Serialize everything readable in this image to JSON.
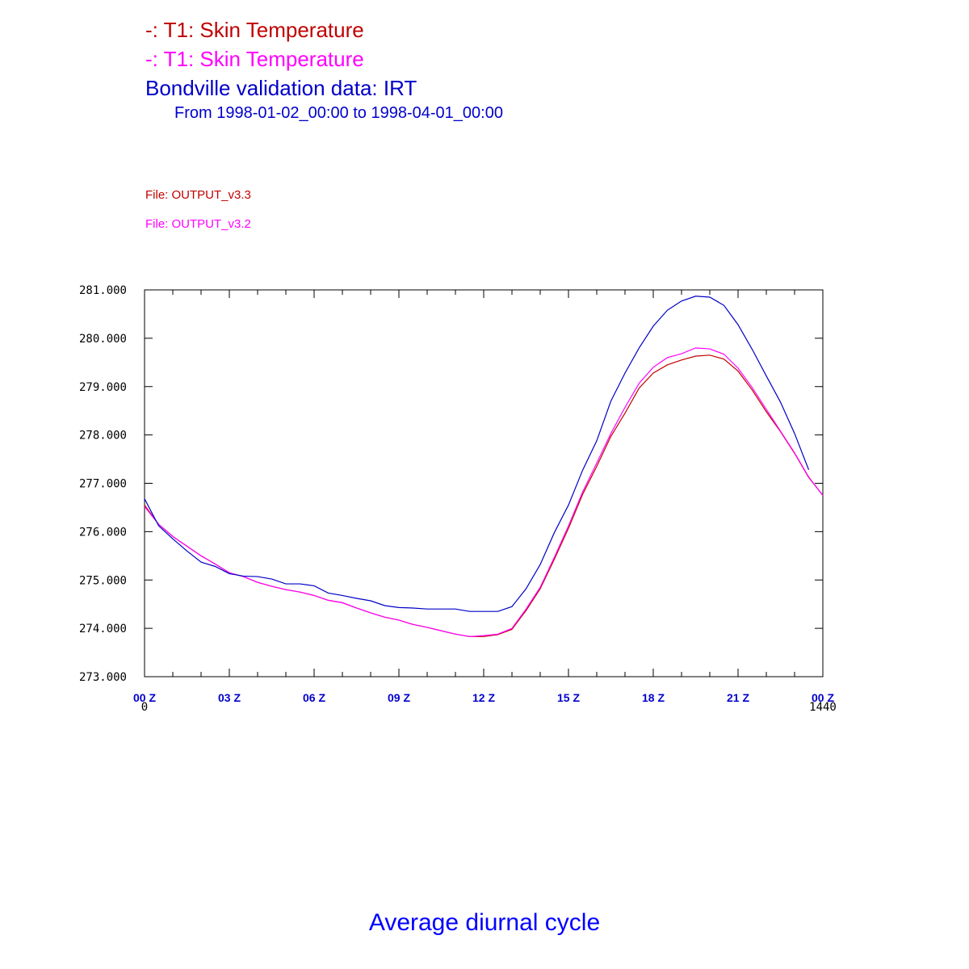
{
  "chart_data": {
    "type": "line",
    "title": "Average diurnal cycle",
    "subtitle": "From 1998-01-02_00:00 to 1998-04-01_00:00",
    "x": [
      0,
      30,
      60,
      90,
      120,
      150,
      180,
      210,
      240,
      270,
      300,
      330,
      360,
      390,
      420,
      450,
      480,
      510,
      540,
      570,
      600,
      630,
      660,
      690,
      720,
      750,
      780,
      810,
      840,
      870,
      900,
      930,
      960,
      990,
      1020,
      1050,
      1080,
      1110,
      1140,
      1170,
      1200,
      1230,
      1260,
      1290,
      1320,
      1350,
      1380,
      1410,
      1440
    ],
    "series": [
      {
        "name": "-: T1: Skin Temperature",
        "file": "File: OUTPUT_v3.3",
        "color": "#c00000",
        "values": [
          276.55,
          276.15,
          275.9,
          275.7,
          275.5,
          275.33,
          275.15,
          275.07,
          274.95,
          274.87,
          274.8,
          274.75,
          274.68,
          274.58,
          274.53,
          274.42,
          274.32,
          274.23,
          274.17,
          274.08,
          274.02,
          273.95,
          273.88,
          273.83,
          273.83,
          273.87,
          273.98,
          274.37,
          274.82,
          275.43,
          276.07,
          276.77,
          277.35,
          277.97,
          278.45,
          278.97,
          279.28,
          279.45,
          279.55,
          279.63,
          279.65,
          279.57,
          279.32,
          278.93,
          278.48,
          278.07,
          277.62,
          277.12,
          276.75
        ]
      },
      {
        "name": "-: T1: Skin Temperature",
        "file": "File: OUTPUT_v3.2",
        "color": "#ff00ff",
        "values": [
          276.52,
          276.15,
          275.9,
          275.7,
          275.5,
          275.33,
          275.15,
          275.07,
          274.95,
          274.87,
          274.8,
          274.75,
          274.68,
          274.58,
          274.53,
          274.42,
          274.32,
          274.23,
          274.17,
          274.08,
          274.02,
          273.95,
          273.88,
          273.83,
          273.85,
          273.88,
          274.0,
          274.4,
          274.85,
          275.47,
          276.12,
          276.82,
          277.42,
          278.03,
          278.57,
          279.07,
          279.4,
          279.6,
          279.68,
          279.8,
          279.78,
          279.67,
          279.38,
          278.98,
          278.53,
          278.08,
          277.63,
          277.13,
          276.75
        ]
      },
      {
        "name": "Bondville validation data: IRT",
        "color": "#0000c8",
        "values": [
          276.68,
          276.12,
          275.85,
          275.6,
          275.37,
          275.28,
          275.13,
          275.08,
          275.07,
          275.02,
          274.92,
          274.92,
          274.88,
          274.73,
          274.68,
          274.62,
          274.57,
          274.47,
          274.43,
          274.42,
          274.4,
          274.4,
          274.4,
          274.35,
          274.35,
          274.35,
          274.45,
          274.82,
          275.32,
          275.98,
          276.55,
          277.27,
          277.88,
          278.7,
          279.28,
          279.8,
          280.25,
          280.58,
          280.77,
          280.87,
          280.85,
          280.68,
          280.28,
          279.77,
          279.22,
          278.68,
          278.03,
          277.28,
          null
        ]
      }
    ],
    "xlim": [
      0,
      1440
    ],
    "xticks": [
      {
        "value": 0,
        "label": "00 Z"
      },
      {
        "value": 180,
        "label": "03 Z"
      },
      {
        "value": 360,
        "label": "06 Z"
      },
      {
        "value": 540,
        "label": "09 Z"
      },
      {
        "value": 720,
        "label": "12 Z"
      },
      {
        "value": 900,
        "label": "15 Z"
      },
      {
        "value": 1080,
        "label": "18 Z"
      },
      {
        "value": 1260,
        "label": "21 Z"
      },
      {
        "value": 1440,
        "label": "00 Z"
      }
    ],
    "xticks_minor": [
      60,
      120,
      240,
      300,
      420,
      480,
      600,
      660,
      780,
      840,
      960,
      1020,
      1140,
      1200,
      1320,
      1380
    ],
    "ylim": [
      273,
      281
    ],
    "yticks": [
      {
        "value": 273,
        "label": "273.000"
      },
      {
        "value": 274,
        "label": "274.000"
      },
      {
        "value": 275,
        "label": "275.000"
      },
      {
        "value": 276,
        "label": "276.000"
      },
      {
        "value": 277,
        "label": "277.000"
      },
      {
        "value": 278,
        "label": "278.000"
      },
      {
        "value": 279,
        "label": "279.000"
      },
      {
        "value": 280,
        "label": "280.000"
      },
      {
        "value": 281,
        "label": "281.000"
      }
    ]
  }
}
